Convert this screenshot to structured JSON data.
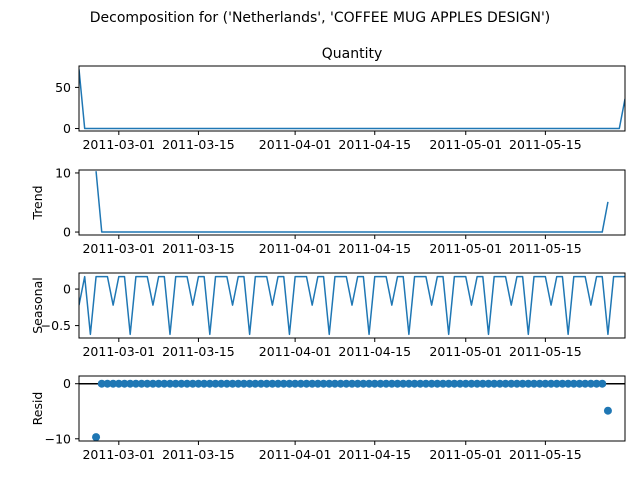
{
  "figure": {
    "suptitle": "Decomposition for ('Netherlands', 'COFFEE MUG APPLES DESIGN')"
  },
  "colors": {
    "series": "#1f77b4",
    "axis": "#000000",
    "background": "#ffffff"
  },
  "chart_data": [
    {
      "type": "line",
      "title": "Quantity",
      "ylabel": "",
      "x_start": "2011-02-22",
      "x_end": "2011-05-29",
      "ylim": [
        -3,
        76
      ],
      "yticks": [
        0,
        50
      ],
      "xticks": [
        "2011-03-01",
        "2011-03-15",
        "2011-04-01",
        "2011-04-15",
        "2011-05-01",
        "2011-05-15"
      ],
      "grid": false,
      "series": [
        {
          "x": [
            "2011-02-22",
            "2011-02-23",
            "2011-05-28",
            "2011-05-29"
          ],
          "values": [
            72,
            0,
            0,
            36
          ]
        }
      ]
    },
    {
      "type": "line",
      "title": "",
      "ylabel": "Trend",
      "x_start": "2011-02-22",
      "x_end": "2011-05-29",
      "ylim": [
        -0.5,
        10.5
      ],
      "yticks": [
        0,
        10
      ],
      "xticks": [
        "2011-03-01",
        "2011-03-15",
        "2011-04-01",
        "2011-04-15",
        "2011-05-01",
        "2011-05-15"
      ],
      "grid": false,
      "series": [
        {
          "x": [
            "2011-02-25",
            "2011-02-26",
            "2011-05-25",
            "2011-05-26"
          ],
          "values": [
            10.3,
            0,
            0,
            5.1
          ]
        }
      ]
    },
    {
      "type": "line",
      "title": "",
      "ylabel": "Seasonal",
      "x_start": "2011-02-22",
      "x_end": "2011-05-29",
      "ylim": [
        -0.67,
        0.22
      ],
      "yticks": [
        0.0,
        -0.5
      ],
      "xticks": [
        "2011-03-01",
        "2011-03-15",
        "2011-04-01",
        "2011-04-15",
        "2011-05-01",
        "2011-05-15"
      ],
      "grid": false,
      "period": 7,
      "pattern": [
        0.17,
        -0.62,
        0.17,
        0.17,
        0.17,
        -0.22,
        0.17
      ],
      "pattern_start": "2011-02-23",
      "series": [
        {
          "x_first": "2011-02-22",
          "first_value": -0.22
        }
      ]
    },
    {
      "type": "scatter",
      "title": "",
      "ylabel": "Resid",
      "x_start": "2011-02-22",
      "x_end": "2011-05-29",
      "ylim": [
        -10.4,
        1.4
      ],
      "yticks": [
        0,
        -10
      ],
      "xticks": [
        "2011-03-01",
        "2011-03-15",
        "2011-04-01",
        "2011-04-15",
        "2011-05-01",
        "2011-05-15"
      ],
      "grid": false,
      "zero_line": true,
      "series": [
        {
          "x_first": "2011-02-25",
          "first_value": -9.7,
          "x_rest_start": "2011-02-26",
          "x_rest_end": "2011-05-25",
          "rest_values": [
            0
          ],
          "x_last": "2011-05-26",
          "last_value": -4.9
        }
      ]
    }
  ]
}
